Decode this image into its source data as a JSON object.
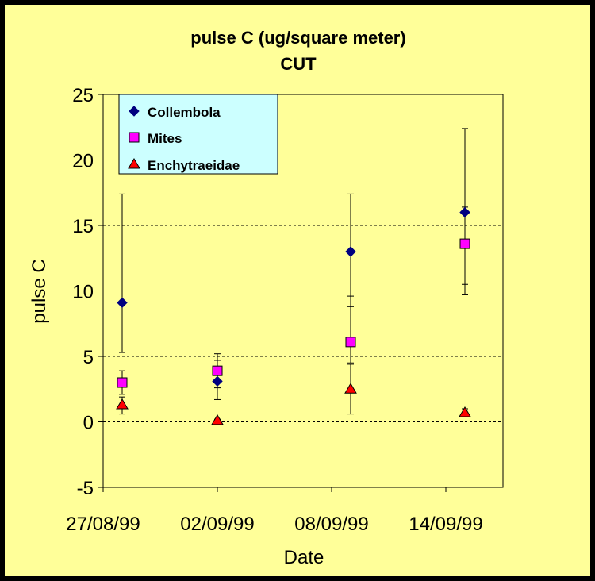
{
  "chart_data": {
    "type": "scatter",
    "title": "pulse C (ug/square meter)",
    "subtitle": "CUT",
    "xlabel": "Date",
    "ylabel": "pulse C",
    "ylim": [
      -5,
      25
    ],
    "y_ticks": [
      "-5",
      "0",
      "5",
      "10",
      "15",
      "20",
      "25"
    ],
    "x_ticks": [
      "27/08/99",
      "02/09/99",
      "08/09/99",
      "14/09/99"
    ],
    "x_range": [
      "27/08/99",
      "17/09/99"
    ],
    "grid": "horizontal dashed",
    "legend_position": "top-left",
    "series": [
      {
        "name": "Collembola",
        "color": "#000080",
        "marker": "diamond",
        "points": [
          {
            "x": "28/08/99",
            "y": 9.1,
            "err_low": 5.3,
            "err_high": 17.4
          },
          {
            "x": "02/09/99",
            "y": 3.1,
            "err_low": 1.7,
            "err_high": 4.7
          },
          {
            "x": "09/09/99",
            "y": 13.0,
            "err_low": 8.8,
            "err_high": 17.4
          },
          {
            "x": "15/09/99",
            "y": 16.0,
            "err_low": 9.7,
            "err_high": 22.4
          }
        ]
      },
      {
        "name": "Mites",
        "color": "#FF00FF",
        "marker": "square",
        "points": [
          {
            "x": "28/08/99",
            "y": 3.0,
            "err_low": 2.1,
            "err_high": 3.9
          },
          {
            "x": "02/09/99",
            "y": 3.9,
            "err_low": 2.6,
            "err_high": 5.2
          },
          {
            "x": "09/09/99",
            "y": 6.1,
            "err_low": 4.5,
            "err_high": 9.6
          },
          {
            "x": "15/09/99",
            "y": 13.6,
            "err_low": 10.5,
            "err_high": 16.4
          }
        ]
      },
      {
        "name": "Enchytraeidae",
        "color": "#FF0000",
        "marker": "triangle",
        "points": [
          {
            "x": "28/08/99",
            "y": 1.3,
            "err_low": 0.6,
            "err_high": 1.9
          },
          {
            "x": "02/09/99",
            "y": 0.1,
            "err_low": 0.0,
            "err_high": 0.2
          },
          {
            "x": "09/09/99",
            "y": 2.5,
            "err_low": 0.6,
            "err_high": 4.4
          },
          {
            "x": "15/09/99",
            "y": 0.7,
            "err_low": 0.4,
            "err_high": 1.0
          }
        ]
      }
    ]
  },
  "colors": {
    "background": "#FFFF99",
    "border": "#000000",
    "legend_bg": "#CCFFFF"
  }
}
